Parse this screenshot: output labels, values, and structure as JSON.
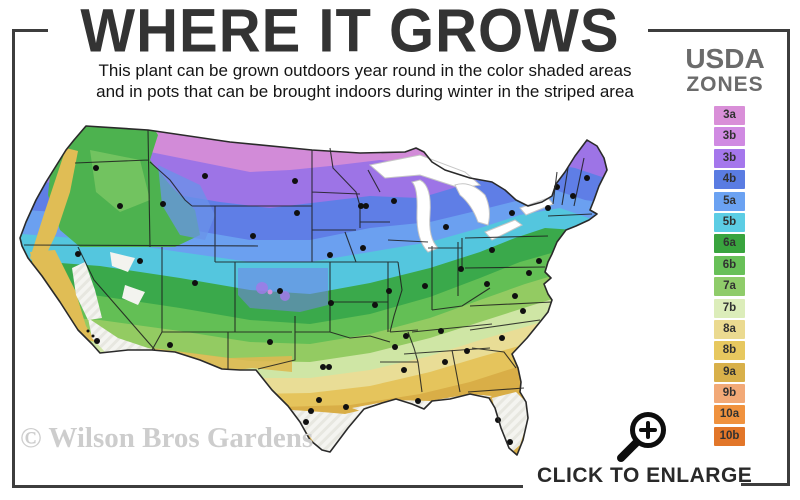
{
  "header": {
    "title": "WHERE IT GROWS",
    "subtitle_line1": "This plant can be grown outdoors year round in the color shaded areas",
    "subtitle_line2": "and in pots that can be brought indoors during winter in the striped area"
  },
  "legend": {
    "title_line1": "USDA",
    "title_line2": "ZONES",
    "zones": [
      {
        "label": "3a",
        "color": "#d98fd8"
      },
      {
        "label": "3b",
        "color": "#d08ae2"
      },
      {
        "label": "3b",
        "color": "#a577ec"
      },
      {
        "label": "4b",
        "color": "#5a7ce2"
      },
      {
        "label": "5a",
        "color": "#6ba2f2"
      },
      {
        "label": "5b",
        "color": "#5ccde4"
      },
      {
        "label": "6a",
        "color": "#39a43e"
      },
      {
        "label": "6b",
        "color": "#68c058"
      },
      {
        "label": "7a",
        "color": "#8fcc6a"
      },
      {
        "label": "7b",
        "color": "#dcedba"
      },
      {
        "label": "8a",
        "color": "#ebda90"
      },
      {
        "label": "8b",
        "color": "#e7c85f"
      },
      {
        "label": "9a",
        "color": "#d8b04a"
      },
      {
        "label": "9b",
        "color": "#f2a977"
      },
      {
        "label": "10a",
        "color": "#f0923e"
      },
      {
        "label": "10b",
        "color": "#e27629"
      }
    ]
  },
  "map": {
    "subject": "Continental United States hardiness zone map",
    "magnifier_icon": "zoom-in-magnifier-icon"
  },
  "footer": {
    "enlarge_label": "CLICK TO ENLARGE"
  },
  "watermark": "© Wilson Bros Gardens"
}
